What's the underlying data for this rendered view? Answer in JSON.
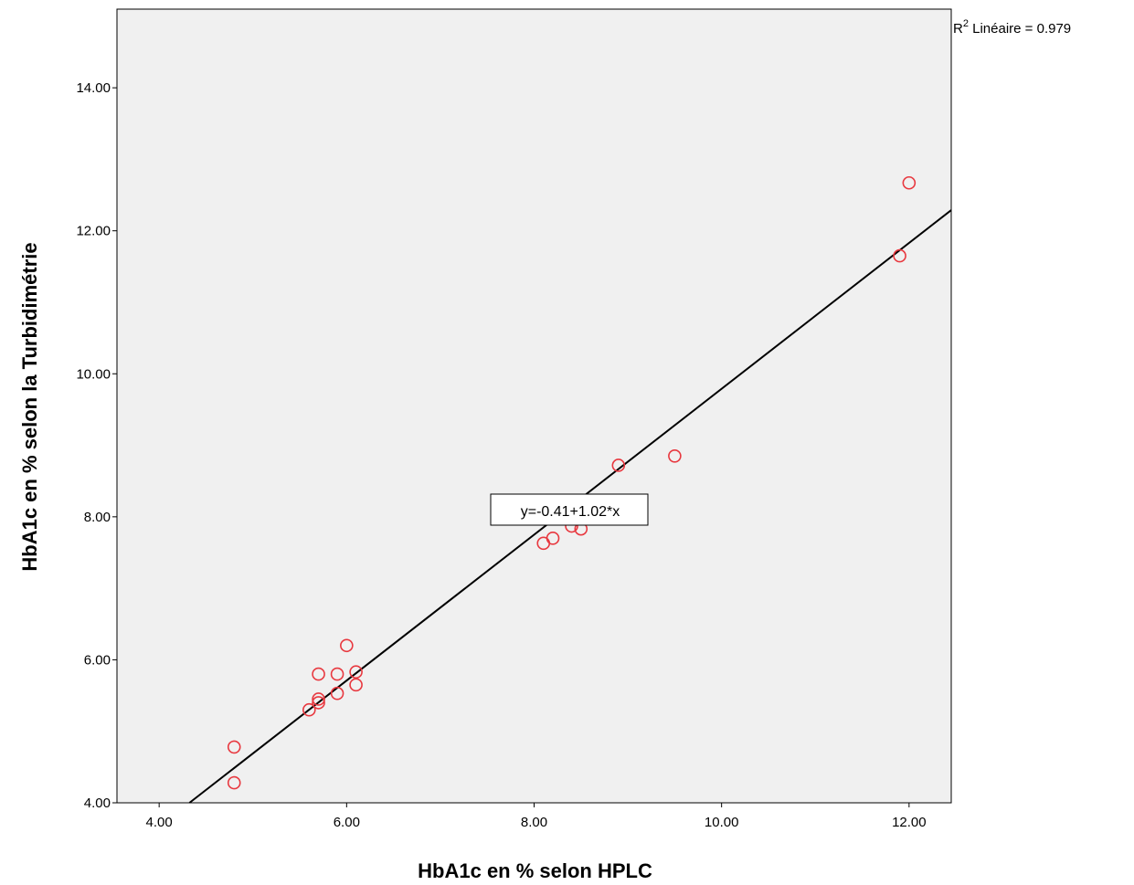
{
  "chart_data": {
    "type": "scatter",
    "title": "",
    "xlabel": "HbA1c en % selon HPLC",
    "ylabel": "HbA1c en % selon la Turbidimétrie",
    "xlim": [
      3.55,
      12.45
    ],
    "ylim": [
      4.0,
      15.1
    ],
    "x_ticks": [
      "4.00",
      "6.00",
      "8.00",
      "10.00",
      "12.00"
    ],
    "y_ticks": [
      "4.00",
      "6.00",
      "8.00",
      "10.00",
      "12.00",
      "14.00"
    ],
    "grid": false,
    "points": [
      {
        "x": 4.8,
        "y": 4.28
      },
      {
        "x": 4.8,
        "y": 4.78
      },
      {
        "x": 5.6,
        "y": 5.3
      },
      {
        "x": 5.7,
        "y": 5.4
      },
      {
        "x": 5.7,
        "y": 5.45
      },
      {
        "x": 5.7,
        "y": 5.8
      },
      {
        "x": 5.9,
        "y": 5.53
      },
      {
        "x": 5.9,
        "y": 5.8
      },
      {
        "x": 6.0,
        "y": 6.2
      },
      {
        "x": 6.1,
        "y": 5.65
      },
      {
        "x": 6.1,
        "y": 5.83
      },
      {
        "x": 8.1,
        "y": 7.63
      },
      {
        "x": 8.2,
        "y": 7.7
      },
      {
        "x": 8.4,
        "y": 7.87
      },
      {
        "x": 8.5,
        "y": 7.83
      },
      {
        "x": 8.9,
        "y": 8.72
      },
      {
        "x": 9.5,
        "y": 8.85
      },
      {
        "x": 11.9,
        "y": 11.65
      },
      {
        "x": 12.0,
        "y": 12.67
      }
    ],
    "fit_line": {
      "intercept": -0.41,
      "slope": 1.02
    },
    "fit_label": "y=-0.41+1.02*x",
    "r2": {
      "prefix": "R",
      "superscript": "2",
      "label": " Linéaire = 0.979"
    },
    "colors": {
      "plot_background": "#f0f0f0",
      "marker": "#e8383f",
      "fit_line": "#000000"
    }
  }
}
